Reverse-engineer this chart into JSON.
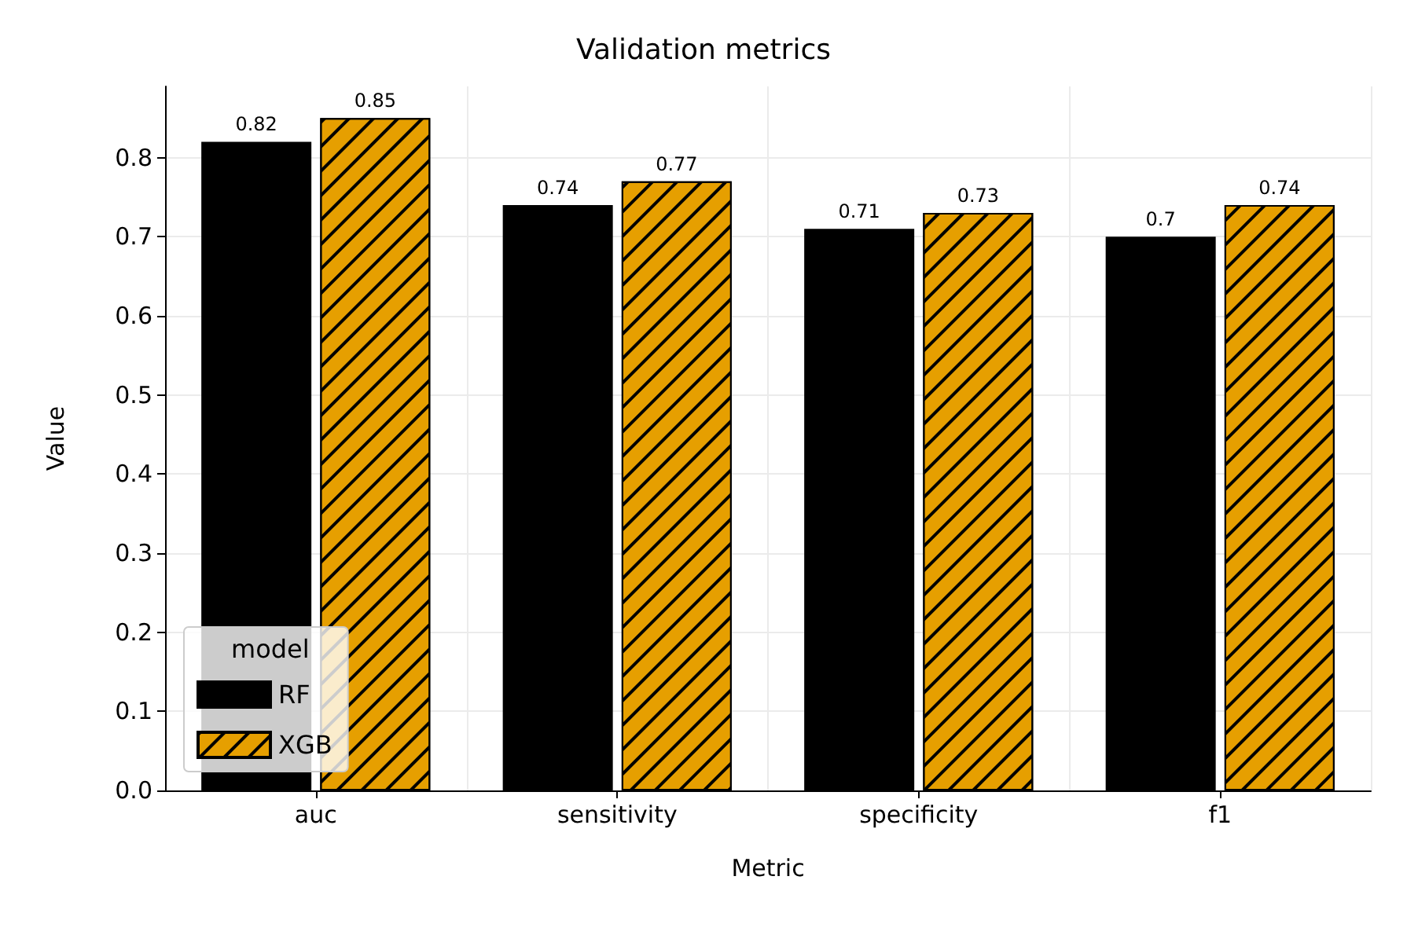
{
  "chart_data": {
    "type": "bar",
    "title": "Validation metrics",
    "xlabel": "Metric",
    "ylabel": "Value",
    "legend_title": "model",
    "categories": [
      "auc",
      "sensitivity",
      "specificity",
      "f1"
    ],
    "series": [
      {
        "name": "RF",
        "color": "#000000",
        "values": [
          0.82,
          0.74,
          0.71,
          0.7
        ]
      },
      {
        "name": "XGB",
        "color": "#e69f00",
        "values": [
          0.85,
          0.77,
          0.73,
          0.74
        ]
      }
    ],
    "ylim": [
      0,
      0.89
    ],
    "yticks": [
      {
        "value": 0,
        "label": "0.0"
      },
      0.1,
      0.2,
      0.3,
      0.4,
      0.5,
      0.6,
      0.7,
      0.8
    ],
    "grid": true,
    "legend": "bottom left",
    "data_labels": true
  }
}
